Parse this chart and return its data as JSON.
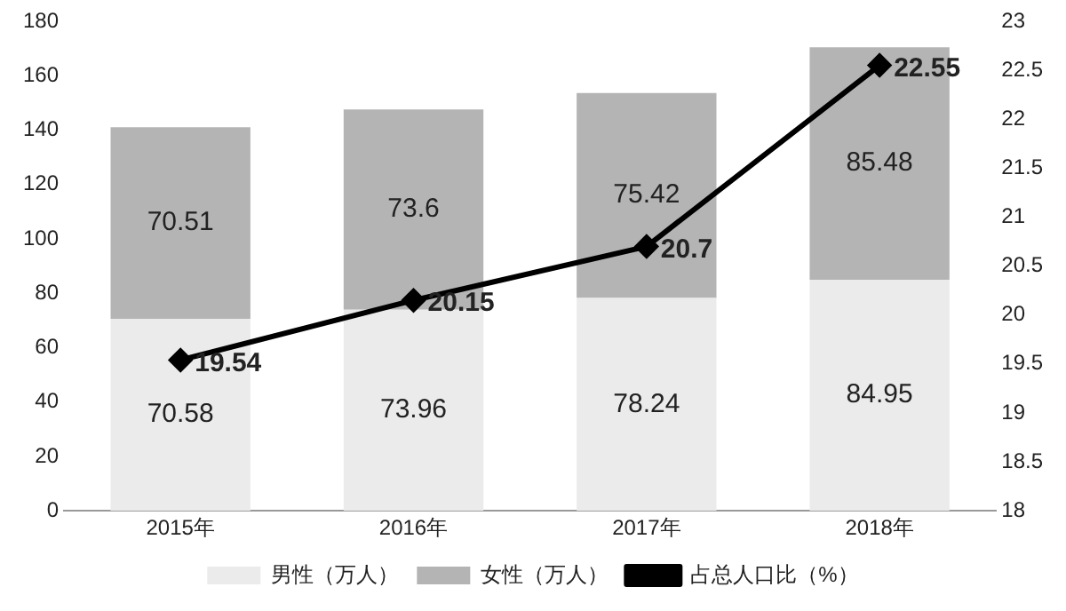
{
  "chart_data": {
    "type": "bar",
    "stacked": true,
    "categories": [
      "2015年",
      "2016年",
      "2017年",
      "2018年"
    ],
    "series": [
      {
        "name": "男性（万人）",
        "color": "#ebebeb",
        "values": [
          70.58,
          73.96,
          78.24,
          84.95
        ]
      },
      {
        "name": "女性（万人）",
        "color": "#b4b4b4",
        "values": [
          70.51,
          73.6,
          75.42,
          85.48
        ]
      },
      {
        "name": "占总人口比（%）",
        "type": "line",
        "axis": "y2",
        "color": "#000000",
        "values": [
          19.54,
          20.15,
          20.7,
          22.55
        ],
        "marker": "diamond"
      }
    ],
    "ylim": [
      0,
      180
    ],
    "yticks": [
      0,
      20,
      40,
      60,
      80,
      100,
      120,
      140,
      160,
      180
    ],
    "y2lim": [
      18,
      23
    ],
    "y2ticks": [
      18,
      18.5,
      19,
      19.5,
      20,
      20.5,
      21,
      21.5,
      22,
      22.5,
      23
    ],
    "data_labels": true,
    "grid": false,
    "legend": "bottom"
  }
}
